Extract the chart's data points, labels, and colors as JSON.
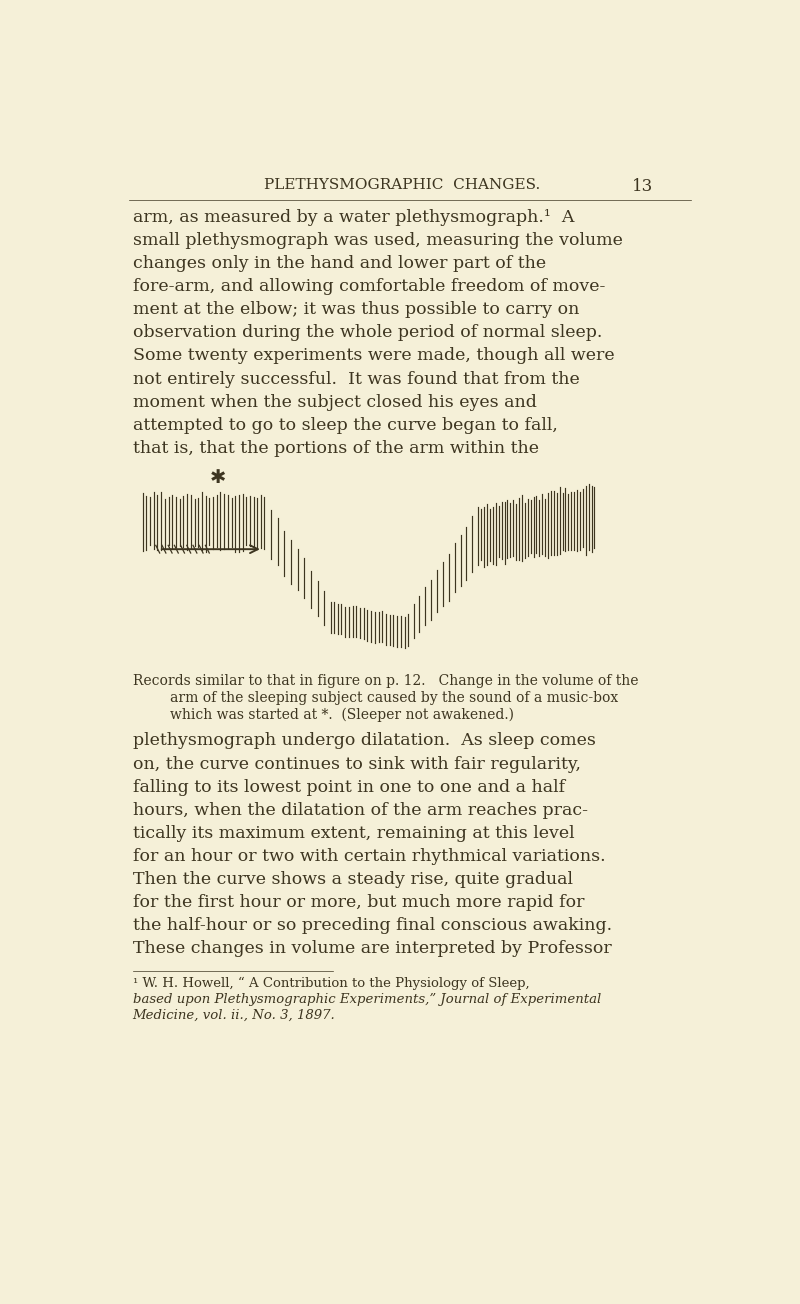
{
  "bg_color": "#f5f0d8",
  "text_color": "#3d3520",
  "header_text": "PLETHYSMOGRAPHIC  CHANGES.",
  "page_number": "13",
  "main_text_blocks": [
    "arm, as measured by a water plethysmograph.¹  A",
    "small plethysmograph was used, measuring the volume",
    "changes only in the hand and lower part of the",
    "fore-arm, and allowing comfortable freedom of move-",
    "ment at the elbow; it was thus possible to carry on",
    "observation during the whole period of normal sleep.",
    "Some twenty experiments were made, though all were",
    "not entirely successful.  It was found that from the",
    "moment when the subject closed his eyes and",
    "attempted to go to sleep the curve began to fall,",
    "that is, that the portions of the arm within the"
  ],
  "caption_lines": [
    "Records similar to that in figure on p. 12.   Change in the volume of the",
    "arm of the sleeping subject caused by the sound of a music-box",
    "which was started at *.  (Sleeper not awakened.)"
  ],
  "body_text_blocks": [
    "plethysmograph undergo dilatation.  As sleep comes",
    "on, the curve continues to sink with fair regularity,",
    "falling to its lowest point in one to one and a half",
    "hours, when the dilatation of the arm reaches prac-",
    "tically its maximum extent, remaining at this level",
    "for an hour or two with certain rhythmical variations.",
    "Then the curve shows a steady rise, quite gradual",
    "for the first hour or more, but much more rapid for",
    "the half-hour or so preceding final conscious awaking.",
    "These changes in volume are interpreted by Professor"
  ],
  "footnote_lines": [
    "¹ W. H. Howell, “ A Contribution to the Physiology of Sleep,",
    "based upon Plethysmographic Experiments,” Journal of Experimental",
    "Medicine, vol. ii., No. 3, 1897."
  ],
  "spike_color": "#3d3520",
  "arrow_color": "#3d3520"
}
